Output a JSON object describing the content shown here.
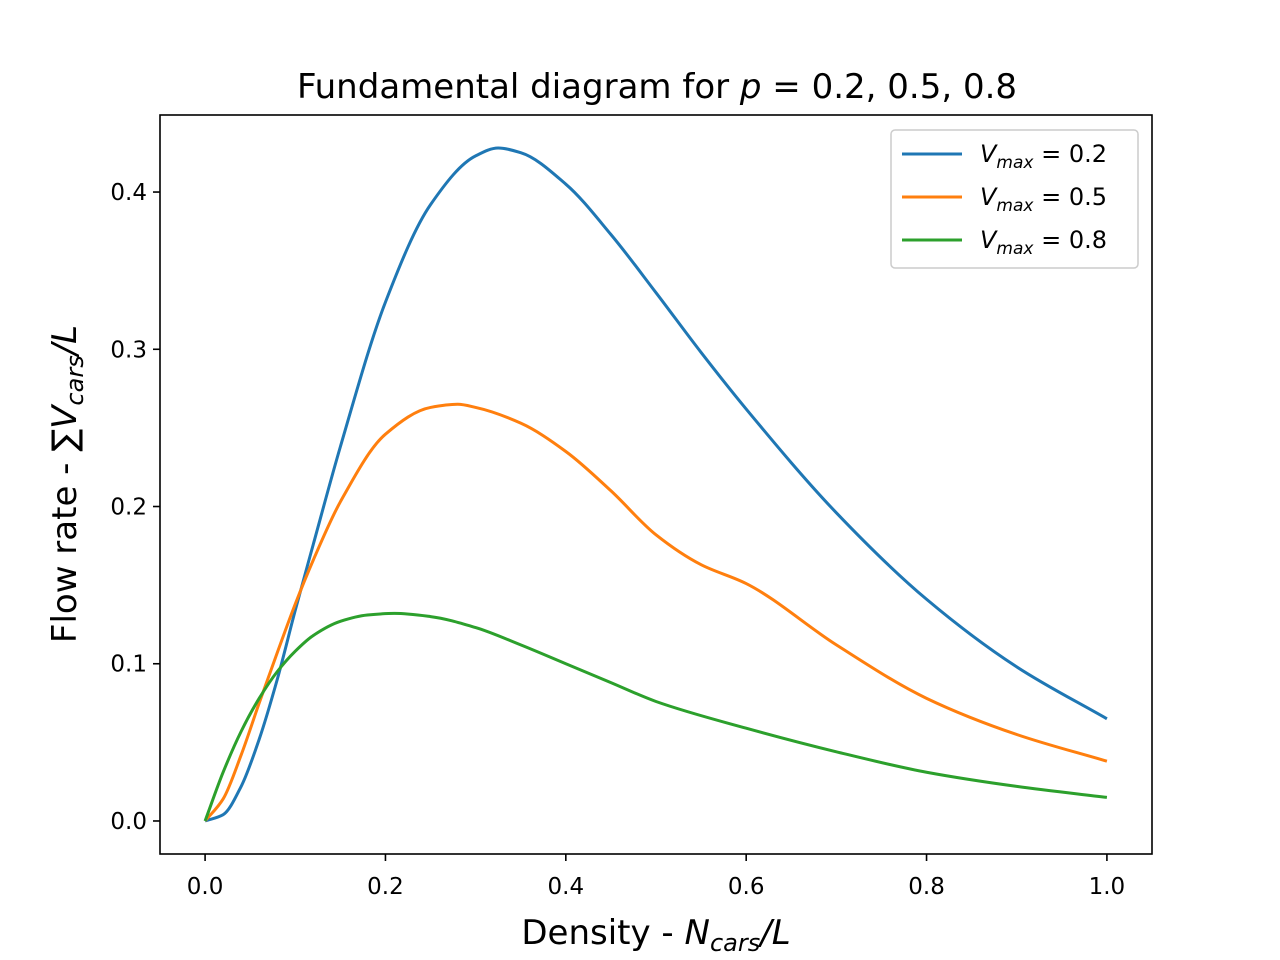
{
  "chart_data": {
    "type": "line",
    "title": {
      "prefix": "Fundamental diagram for ",
      "var": "p",
      "eq": " = ",
      "values": "0.2, 0.5, 0.8"
    },
    "xlabel": {
      "text": "Density - ",
      "var": "N",
      "sub": "cars",
      "tail": "/L"
    },
    "ylabel": {
      "text": "Flow rate - ∑",
      "var": "V",
      "sub": "cars",
      "tail": "/L"
    },
    "xlim": [
      -0.05,
      1.05
    ],
    "ylim": [
      -0.021,
      0.449
    ],
    "xticks": [
      "0.0",
      "0.2",
      "0.4",
      "0.6",
      "0.8",
      "1.0"
    ],
    "yticks": [
      "0.0",
      "0.1",
      "0.2",
      "0.3",
      "0.4"
    ],
    "grid": false,
    "legend_position": "top-right",
    "series": [
      {
        "name": "V_max = 0.2",
        "legend": {
          "var": "V",
          "sub": "max",
          "tail": " = 0.2"
        },
        "color": "#1f77b4",
        "x": [
          0,
          0.02,
          0.04,
          0.06,
          0.08,
          0.1,
          0.12,
          0.15,
          0.2,
          0.25,
          0.3,
          0.325,
          0.35,
          0.4,
          0.45,
          0.5,
          0.55,
          0.6,
          0.7,
          0.8,
          0.9,
          1.0
        ],
        "y": [
          0,
          0.004,
          0.022,
          0.052,
          0.09,
          0.134,
          0.176,
          0.238,
          0.33,
          0.392,
          0.423,
          0.428,
          0.425,
          0.405,
          0.373,
          0.336,
          0.298,
          0.262,
          0.196,
          0.141,
          0.098,
          0.065
        ]
      },
      {
        "name": "V_max = 0.5",
        "legend": {
          "var": "V",
          "sub": "max",
          "tail": " = 0.5"
        },
        "color": "#ff7f0e",
        "x": [
          0,
          0.02,
          0.04,
          0.06,
          0.08,
          0.1,
          0.12,
          0.15,
          0.2,
          0.25,
          0.28,
          0.3,
          0.35,
          0.4,
          0.45,
          0.5,
          0.55,
          0.6,
          0.7,
          0.8,
          0.9,
          1.0
        ],
        "y": [
          0,
          0.014,
          0.042,
          0.075,
          0.107,
          0.138,
          0.166,
          0.203,
          0.246,
          0.263,
          0.265,
          0.263,
          0.253,
          0.235,
          0.21,
          0.182,
          0.163,
          0.151,
          0.112,
          0.078,
          0.055,
          0.038
        ]
      },
      {
        "name": "V_max = 0.8",
        "legend": {
          "var": "V",
          "sub": "max",
          "tail": " = 0.8"
        },
        "color": "#2ca02c",
        "x": [
          0,
          0.02,
          0.04,
          0.06,
          0.08,
          0.1,
          0.12,
          0.15,
          0.18,
          0.21,
          0.25,
          0.3,
          0.35,
          0.4,
          0.45,
          0.5,
          0.6,
          0.7,
          0.8,
          0.9,
          1.0
        ],
        "y": [
          0,
          0.031,
          0.057,
          0.078,
          0.095,
          0.108,
          0.118,
          0.127,
          0.131,
          0.132,
          0.13,
          0.123,
          0.112,
          0.1,
          0.088,
          0.076,
          0.059,
          0.044,
          0.031,
          0.022,
          0.015
        ]
      }
    ]
  }
}
